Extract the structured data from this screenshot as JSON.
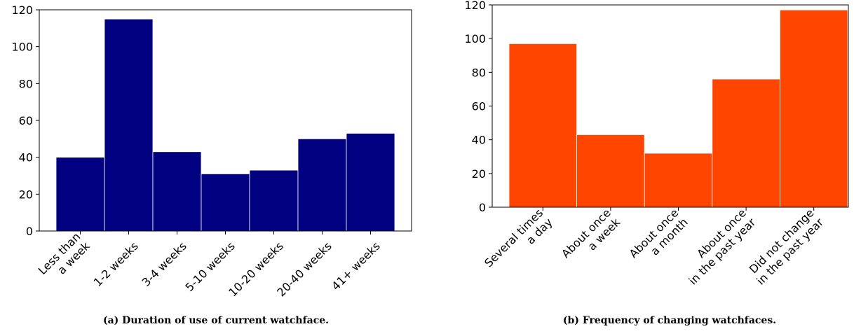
{
  "chart_data": [
    {
      "type": "bar",
      "caption": "(a) Duration of use of current watchface.",
      "categories": [
        [
          "Less than",
          "a week"
        ],
        [
          "1-2 weeks"
        ],
        [
          "3-4 weeks"
        ],
        [
          "5-10 weeks"
        ],
        [
          "10-20 weeks"
        ],
        [
          "20-40 weeks"
        ],
        [
          "41+ weeks"
        ]
      ],
      "values": [
        40,
        115,
        43,
        31,
        33,
        50,
        53
      ],
      "ylim": [
        0,
        120
      ],
      "yticks": [
        0,
        20,
        40,
        60,
        80,
        100,
        120
      ],
      "color": "#000080",
      "grid": false
    },
    {
      "type": "bar",
      "caption": "(b) Frequency of changing watchfaces.",
      "categories": [
        [
          "Several times",
          "a day"
        ],
        [
          "About once",
          "a week"
        ],
        [
          "About once",
          "a month"
        ],
        [
          "About once",
          "in the past year"
        ],
        [
          "Did not change",
          "in the past year"
        ]
      ],
      "values": [
        97,
        43,
        32,
        76,
        117
      ],
      "ylim": [
        0,
        120
      ],
      "yticks": [
        0,
        20,
        40,
        60,
        80,
        100,
        120
      ],
      "color": "#ff4500",
      "grid": false
    }
  ]
}
